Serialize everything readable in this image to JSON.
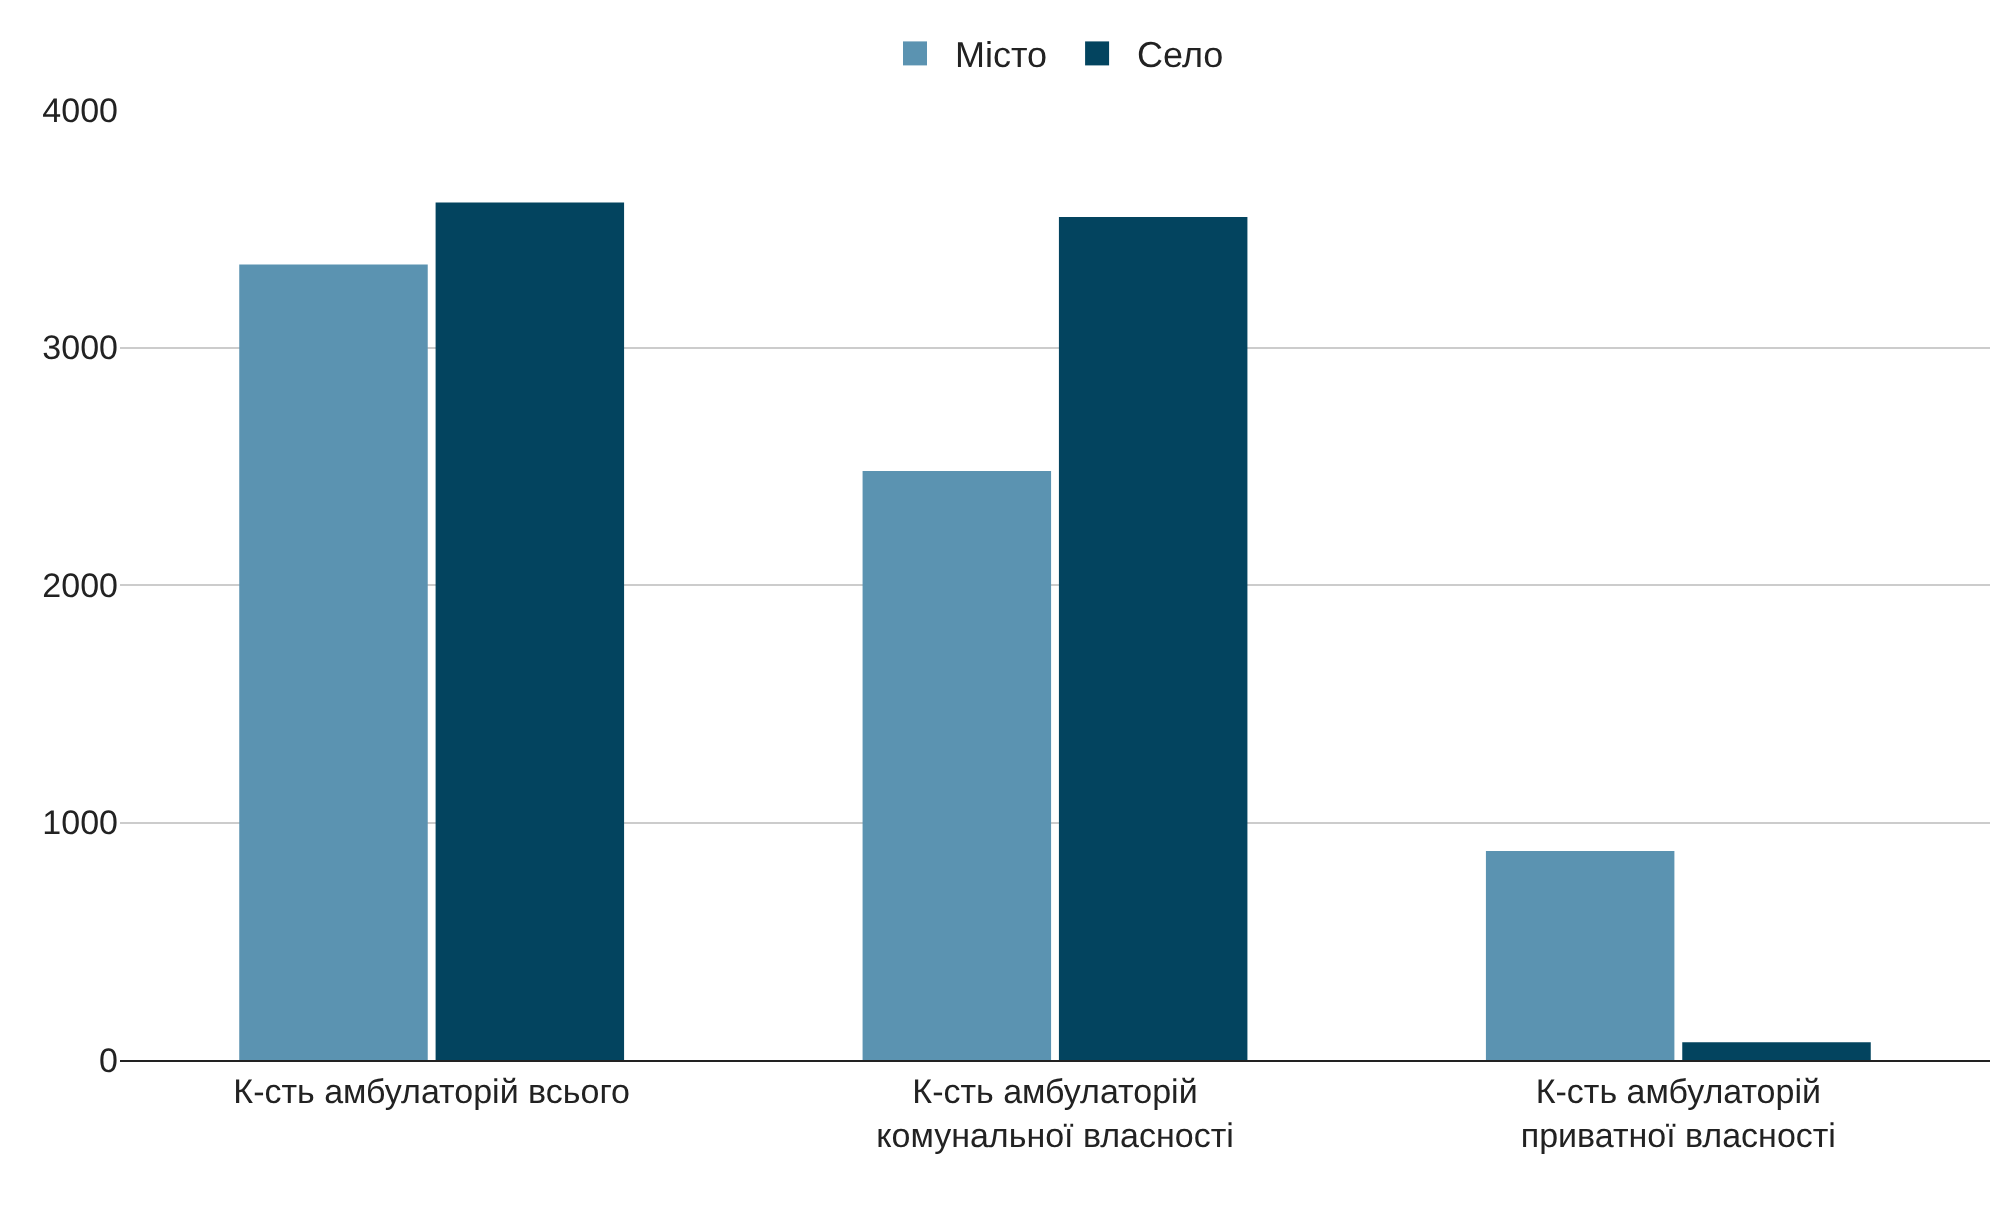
{
  "chart_data": {
    "type": "bar",
    "categories": [
      "К-сть амбулаторій всього",
      "К-сть амбулаторій комунальної власності",
      "К-сть амбулаторій приватної власності"
    ],
    "series": [
      {
        "name": "Місто",
        "color": "#5b93b1",
        "values": [
          3350,
          2480,
          880
        ]
      },
      {
        "name": "Село",
        "color": "#03445f",
        "values": [
          3610,
          3550,
          75
        ]
      }
    ],
    "ylim": [
      0,
      4000
    ],
    "yticks": [
      0,
      1000,
      2000,
      3000,
      4000
    ],
    "grid": "y",
    "legend": "top"
  }
}
